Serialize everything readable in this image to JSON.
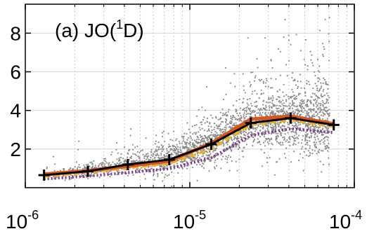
{
  "chart_data": {
    "type": "line",
    "title": "",
    "annotation": {
      "prefix": "(a) JO(",
      "superscript": "1",
      "suffix": "D)"
    },
    "xscale": "log",
    "yscale": "linear",
    "xlim": [
      1e-06,
      0.0001
    ],
    "ylim": [
      0,
      9.5
    ],
    "xticks": [
      {
        "value": 1e-06,
        "base": "10",
        "exponent": "-6"
      },
      {
        "value": 1e-05,
        "base": "10",
        "exponent": "-5"
      },
      {
        "value": 0.0001,
        "base": "10",
        "exponent": "-4"
      }
    ],
    "yticks": [
      {
        "value": 2,
        "label": "2"
      },
      {
        "value": 4,
        "label": "4"
      },
      {
        "value": 6,
        "label": "6"
      },
      {
        "value": 8,
        "label": "8"
      }
    ],
    "grid": {
      "major": true,
      "minor_x": true
    },
    "x": [
      1.3e-06,
      2.4e-06,
      4.2e-06,
      7.5e-06,
      1.35e-05,
      2.35e-05,
      4.1e-05,
      7.5e-05
    ],
    "series": [
      {
        "values": [
          0.65,
          0.85,
          1.2,
          1.45,
          2.25,
          3.35,
          3.6,
          3.25
        ],
        "color": "#000000",
        "style": "solid-plus"
      },
      {
        "values": [
          0.7,
          0.88,
          1.12,
          1.38,
          2.3,
          3.55,
          3.7,
          3.3
        ],
        "color": "#d9541a",
        "style": "solid"
      },
      {
        "values": [
          0.58,
          0.78,
          1.02,
          1.25,
          2.0,
          3.25,
          3.5,
          3.15
        ],
        "color": "#edb120",
        "style": "dashed"
      },
      {
        "values": [
          0.45,
          0.6,
          0.78,
          0.98,
          1.55,
          2.7,
          3.05,
          2.85
        ],
        "color": "#7e2f8e",
        "style": "dotted"
      }
    ],
    "scatter": {
      "color": "#8c8c8c"
    }
  }
}
